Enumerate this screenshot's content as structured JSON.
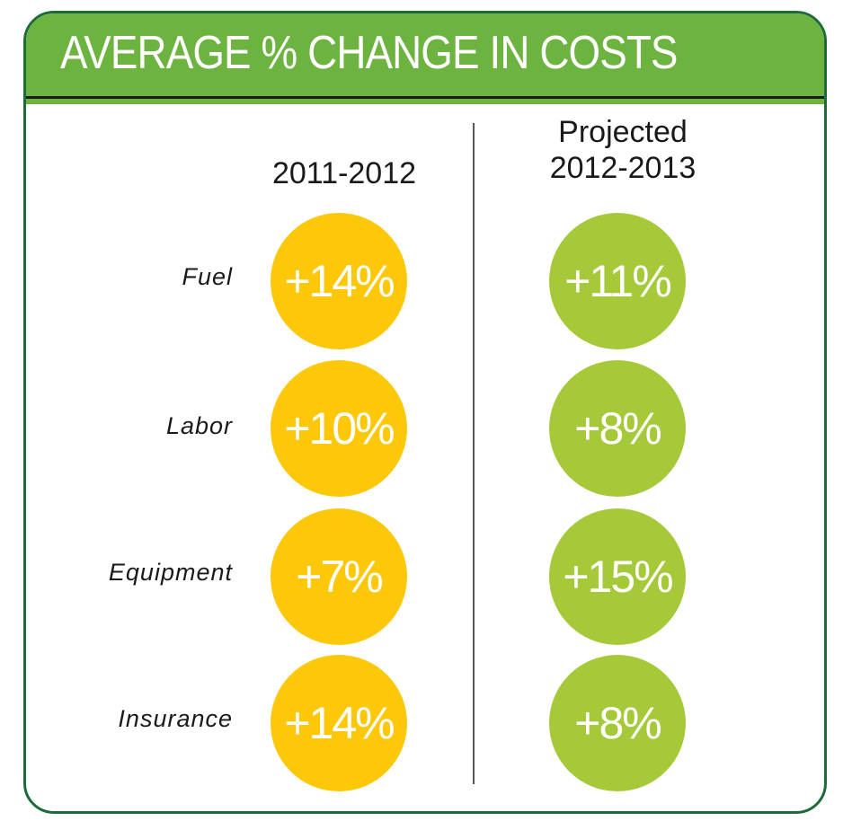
{
  "header": {
    "title": "AVERAGE % CHANGE IN COSTS"
  },
  "columns": {
    "c1": {
      "label": "2011-2012"
    },
    "c2": {
      "line1": "Projected",
      "line2": "2012-2013"
    }
  },
  "rows": [
    {
      "label": "Fuel",
      "v1": "+14%",
      "v2": "+11%"
    },
    {
      "label": "Labor",
      "v1": "+10%",
      "v2": "+8%"
    },
    {
      "label": "Equipment",
      "v1": "+7%",
      "v2": "+15%"
    },
    {
      "label": "Insurance",
      "v1": "+14%",
      "v2": "+8%"
    }
  ],
  "colors": {
    "header_green": "#6db33f",
    "border_green": "#1e6b3a",
    "yellow": "#fdc80a",
    "lime": "#a6c93a"
  },
  "chart_data": {
    "type": "table",
    "title": "AVERAGE % CHANGE IN COSTS",
    "categories": [
      "Fuel",
      "Labor",
      "Equipment",
      "Insurance"
    ],
    "series": [
      {
        "name": "2011-2012",
        "values": [
          14,
          10,
          7,
          14
        ]
      },
      {
        "name": "Projected 2012-2013",
        "values": [
          11,
          8,
          15,
          8
        ]
      }
    ]
  }
}
